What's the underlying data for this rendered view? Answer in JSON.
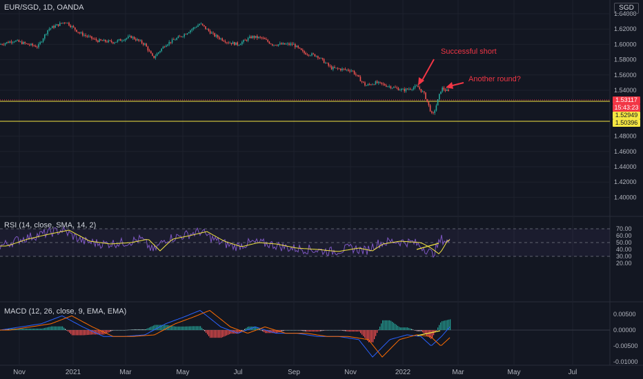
{
  "symbol_title": "EUR/SGD, 1D, OANDA",
  "currency_badge": "SGD",
  "rsi_title": "RSI (14, close, SMA, 14, 2)",
  "macd_title": "MACD (12, 26, close, 9, EMA, EMA)",
  "price_axis": [
    "1.64000",
    "1.62000",
    "1.60000",
    "1.58000",
    "1.56000",
    "1.54000",
    "1.48000",
    "1.46000",
    "1.44000",
    "1.42000",
    "1.40000"
  ],
  "rsi_axis": [
    "70.00",
    "60.00",
    "50.00",
    "40.00",
    "30.00",
    "20.00"
  ],
  "macd_axis": [
    "0.00500",
    "0.00000",
    "-0.00500",
    "-0.01000"
  ],
  "time_axis": [
    "Nov",
    "2021",
    "Mar",
    "May",
    "Jul",
    "Sep",
    "Nov",
    "2022",
    "Mar",
    "May",
    "Jul"
  ],
  "price_tags": {
    "last_price": "1.53117",
    "countdown": "15:43:23",
    "level_upper": "1.52949",
    "level_lower": "1.50396"
  },
  "annotations": {
    "successful_short": "Successful short",
    "another_round": "Another round?"
  },
  "colors": {
    "background": "#131722",
    "up": "#26a69a",
    "down": "#ef5350",
    "level_line": "#f5e642",
    "annotation": "#f23645",
    "rsi_line": "#7e57c2",
    "rsi_ma": "#f5e642",
    "macd_line": "#2962ff",
    "signal_line": "#ff6d00"
  }
}
